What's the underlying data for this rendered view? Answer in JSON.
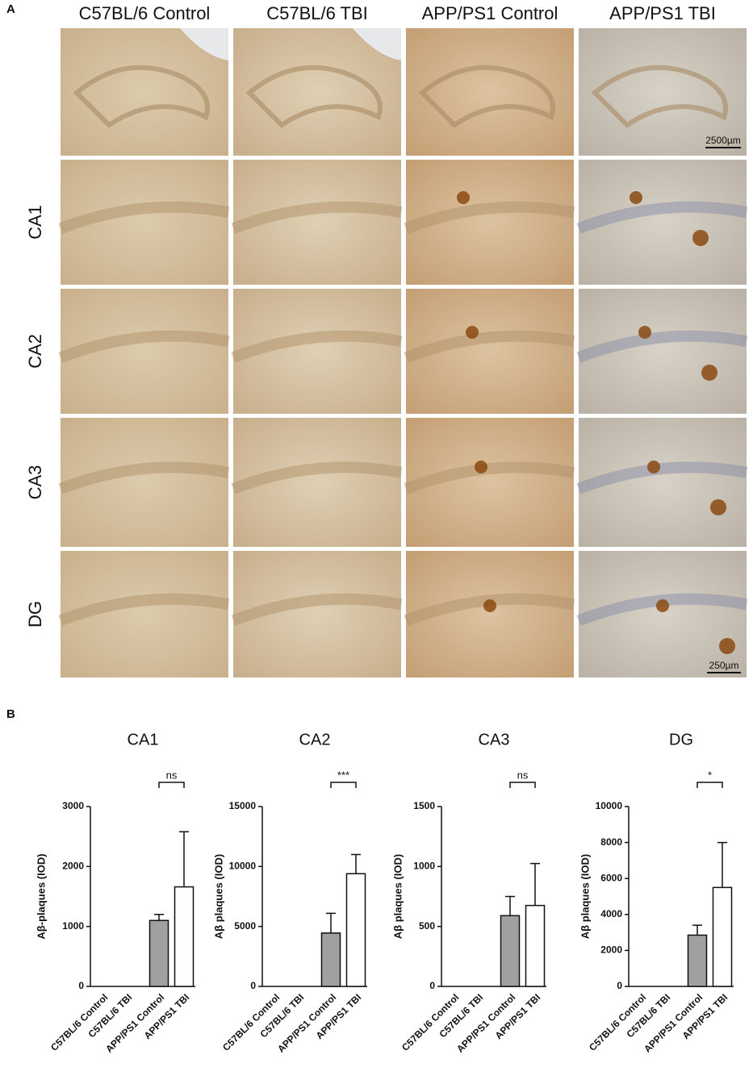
{
  "panel_a": {
    "label": "A",
    "columns": [
      "C57BL/6 Control",
      "C57BL/6 TBI",
      "APP/PS1 Control",
      "APP/PS1 TBI"
    ],
    "rows": [
      "CA1",
      "CA2",
      "CA3",
      "DG"
    ],
    "scale_bars": [
      "2500µm",
      "250µm"
    ]
  },
  "panel_b": {
    "label": "B"
  },
  "chart_data": [
    {
      "type": "bar",
      "title": "CA1",
      "y_label": "Aβ-plaques (IOD)",
      "categories": [
        "C57BL/6 Control",
        "C57BL/6 TBI",
        "APP/PS1 Control",
        "APP/PS1 TBI"
      ],
      "values": [
        0,
        0,
        1100,
        1660
      ],
      "errors": [
        null,
        null,
        100,
        920
      ],
      "colors": [
        "#a0a0a0",
        "#ffffff",
        "#a0a0a0",
        "#ffffff"
      ],
      "ylim": [
        0,
        3000
      ],
      "yticks": [
        0,
        1000,
        2000,
        3000
      ],
      "annotation": "ns"
    },
    {
      "type": "bar",
      "title": "CA2",
      "y_label": "Aβ plaques (IOD)",
      "categories": [
        "C57BL/6 Control",
        "C57BL/6 TBI",
        "APP/PS1 Control",
        "APP/PS1 TBI"
      ],
      "values": [
        0,
        0,
        4450,
        9400
      ],
      "errors": [
        null,
        null,
        1650,
        1600
      ],
      "colors": [
        "#a0a0a0",
        "#ffffff",
        "#a0a0a0",
        "#ffffff"
      ],
      "ylim": [
        0,
        15000
      ],
      "yticks": [
        0,
        5000,
        10000,
        15000
      ],
      "annotation": "***"
    },
    {
      "type": "bar",
      "title": "CA3",
      "y_label": "Aβ plaques (IOD)",
      "categories": [
        "C57BL/6 Control",
        "C57BL/6 TBI",
        "APP/PS1 Control",
        "APP/PS1 TBI"
      ],
      "values": [
        0,
        0,
        590,
        675
      ],
      "errors": [
        null,
        null,
        160,
        350
      ],
      "colors": [
        "#a0a0a0",
        "#ffffff",
        "#a0a0a0",
        "#ffffff"
      ],
      "ylim": [
        0,
        1500
      ],
      "yticks": [
        0,
        500,
        1000,
        1500
      ],
      "annotation": "ns"
    },
    {
      "type": "bar",
      "title": "DG",
      "y_label": "Aβ plaques (IOD)",
      "categories": [
        "C57BL/6 Control",
        "C57BL/6 TBI",
        "APP/PS1 Control",
        "APP/PS1 TBI"
      ],
      "values": [
        0,
        0,
        2850,
        5500
      ],
      "errors": [
        null,
        null,
        550,
        2500
      ],
      "colors": [
        "#a0a0a0",
        "#ffffff",
        "#a0a0a0",
        "#ffffff"
      ],
      "ylim": [
        0,
        10000
      ],
      "yticks": [
        0,
        2000,
        4000,
        6000,
        8000,
        10000
      ],
      "annotation": "*"
    }
  ]
}
